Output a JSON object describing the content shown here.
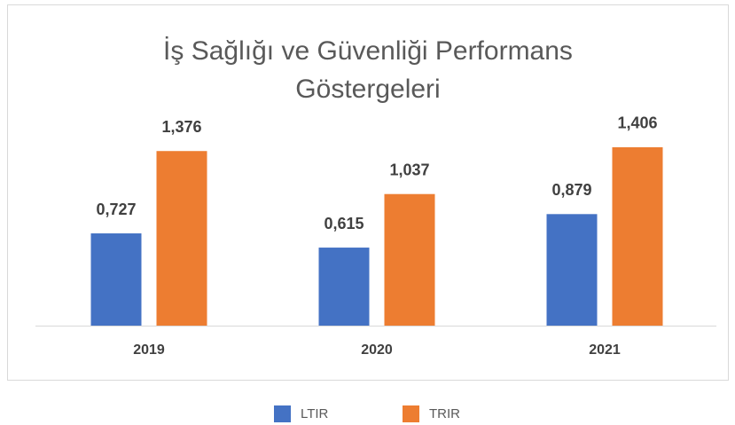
{
  "chart_data": {
    "type": "bar",
    "title": "İş Sağlığı ve Güvenliği Performans Göstergeleri",
    "categories": [
      "2019",
      "2020",
      "2021"
    ],
    "series": [
      {
        "name": "LTIR",
        "color": "#4472c4",
        "values": [
          0.727,
          0.615,
          0.879
        ],
        "value_labels": [
          "0,727",
          "0,615",
          "0,879"
        ]
      },
      {
        "name": "TRIR",
        "color": "#ed7d31",
        "values": [
          1.376,
          1.037,
          1.406
        ],
        "value_labels": [
          "1,376",
          "1,037",
          "1,406"
        ]
      }
    ]
  }
}
